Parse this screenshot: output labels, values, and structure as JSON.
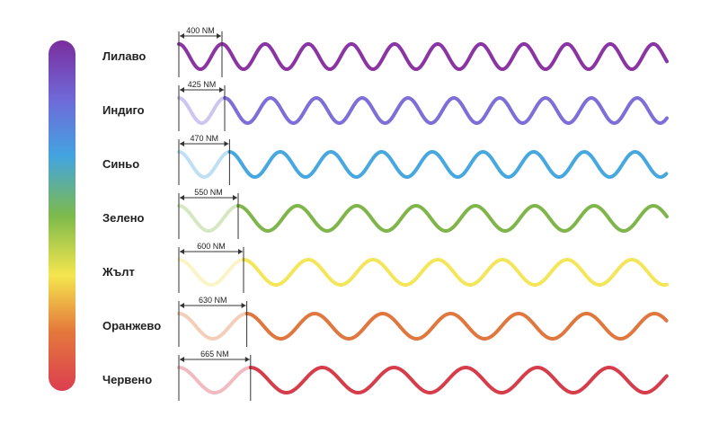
{
  "spectrum_colors": [
    "#7b2d9e",
    "#6f6ad8",
    "#43a4e0",
    "#7dba4c",
    "#f4e64e",
    "#e4793c",
    "#dc3e50"
  ],
  "bands": [
    {
      "name": "Лилаво",
      "wavelength": "400 NM",
      "nm": 400,
      "color": "#8a35a3",
      "light": "#8a35a3"
    },
    {
      "name": "Индиго",
      "wavelength": "425 NM",
      "nm": 425,
      "color": "#7d6ed8",
      "light": "#cfc6f0"
    },
    {
      "name": "Синьо",
      "wavelength": "470 NM",
      "nm": 470,
      "color": "#47a7df",
      "light": "#bfe0f3"
    },
    {
      "name": "Зелено",
      "wavelength": "550 NM",
      "nm": 550,
      "color": "#80b54c",
      "light": "#d6e8c2"
    },
    {
      "name": "Жълт",
      "wavelength": "600 NM",
      "nm": 600,
      "color": "#f4e65a",
      "light": "#faf4c6"
    },
    {
      "name": "Оранжево",
      "wavelength": "630 NM",
      "nm": 630,
      "color": "#e0773e",
      "light": "#f3cfba"
    },
    {
      "name": "Червено",
      "wavelength": "665 NM",
      "nm": 665,
      "color": "#d63d4a",
      "light": "#f0bcc2"
    }
  ]
}
